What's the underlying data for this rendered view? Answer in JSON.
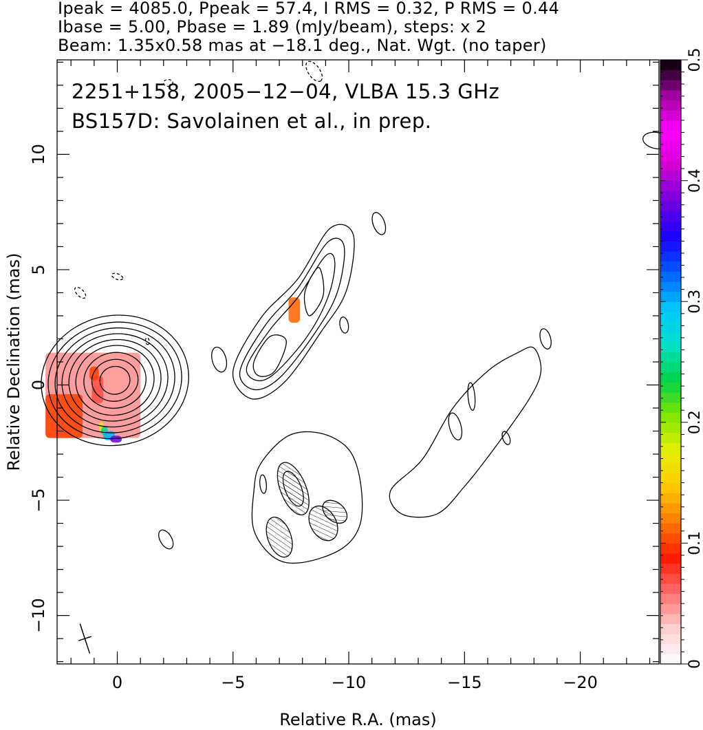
{
  "header": {
    "line1": "Ipeak = 4085.0, Ppeak = 57.4, I RMS = 0.32, P RMS = 0.44",
    "line2": "Ibase = 5.00, Pbase = 1.89 (mJy/beam), steps: x 2",
    "line3": "Beam: 1.35x0.58 mas at −18.1 deg., Nat. Wgt. (no taper)"
  },
  "annotations": {
    "line1": "2251+158, 2005−12−04, VLBA 15.3 GHz",
    "line2": "BS157D: Savolainen et al., in prep."
  },
  "chart_data": {
    "type": "heatmap",
    "title": "",
    "xlabel": "Relative R.A. (mas)",
    "ylabel": "Relative Declination (mas)",
    "xlim": [
      2.6,
      -23.4
    ],
    "ylim": [
      -12.1,
      14.1
    ],
    "xticks": [
      0,
      -5,
      -10,
      -15,
      -20
    ],
    "xtick_labels": [
      "0",
      "−5",
      "−10",
      "−15",
      "−20"
    ],
    "yticks": [
      -10,
      -5,
      0,
      5,
      10
    ],
    "ytick_labels": [
      "−10",
      "−5",
      "0",
      "5",
      "10"
    ],
    "colorbar": {
      "range": [
        0,
        0.5
      ],
      "ticks": [
        0,
        0.1,
        0.2,
        0.3,
        0.4,
        0.5
      ],
      "tick_labels": [
        "0",
        "0.1",
        "0.2",
        "0.3",
        "0.4",
        "0.5"
      ],
      "colormap": [
        "#ffffff",
        "#ffd0d0",
        "#ff7070",
        "#ff1a00",
        "#ff7a00",
        "#ffc800",
        "#e6f000",
        "#7fe600",
        "#00d24a",
        "#00e0c8",
        "#00c8ff",
        "#0060ff",
        "#1a00ff",
        "#7000e0",
        "#d000d0",
        "#ff00ff",
        "#a000a0",
        "#000000"
      ]
    },
    "intensity_contours": {
      "base_mJy_per_beam": 5.0,
      "step_factor": 2,
      "core": {
        "center": [
          0.1,
          0.2
        ],
        "levels": [
          {
            "rx": 3.2,
            "ry": 2.8,
            "rot": -12
          },
          {
            "rx": 2.9,
            "ry": 2.5,
            "rot": -12
          },
          {
            "rx": 2.6,
            "ry": 2.25,
            "rot": -12
          },
          {
            "rx": 2.3,
            "ry": 2.0,
            "rot": -12
          },
          {
            "rx": 2.0,
            "ry": 1.75,
            "rot": -12
          },
          {
            "rx": 1.7,
            "ry": 1.5,
            "rot": -12
          },
          {
            "rx": 1.35,
            "ry": 1.2,
            "rot": -12
          },
          {
            "rx": 1.0,
            "ry": 0.9,
            "rot": -12
          },
          {
            "rx": 0.65,
            "ry": 0.6,
            "rot": -12
          }
        ]
      },
      "jet_component": {
        "levels": [
          [
            [
              -5.0,
              0.6
            ],
            [
              -6.2,
              2.9
            ],
            [
              -7.8,
              4.6
            ],
            [
              -9.2,
              6.8
            ],
            [
              -10.2,
              6.5
            ],
            [
              -9.9,
              4.1
            ],
            [
              -8.8,
              2.3
            ],
            [
              -7.2,
              0.1
            ],
            [
              -5.8,
              -0.6
            ]
          ],
          [
            [
              -5.3,
              0.6
            ],
            [
              -6.4,
              2.6
            ],
            [
              -7.8,
              4.2
            ],
            [
              -9.1,
              6.2
            ],
            [
              -9.8,
              6.0
            ],
            [
              -9.5,
              4.0
            ],
            [
              -8.5,
              2.2
            ],
            [
              -7.0,
              0.3
            ],
            [
              -5.9,
              -0.2
            ]
          ],
          [
            [
              -5.6,
              0.8
            ],
            [
              -6.6,
              2.4
            ],
            [
              -7.8,
              3.8
            ],
            [
              -9.0,
              5.6
            ],
            [
              -9.4,
              5.3
            ],
            [
              -9.1,
              3.8
            ],
            [
              -8.2,
              2.1
            ],
            [
              -6.8,
              0.5
            ],
            [
              -6.0,
              0.2
            ]
          ],
          [
            [
              -5.9,
              1.0
            ],
            [
              -6.6,
              2.1
            ],
            [
              -7.3,
              1.9
            ],
            [
              -6.8,
              0.6
            ],
            [
              -6.1,
              0.4
            ]
          ],
          [
            [
              -8.7,
              5.1
            ],
            [
              -8.9,
              3.9
            ],
            [
              -8.3,
              3.0
            ],
            [
              -8.1,
              4.0
            ]
          ]
        ]
      },
      "extended_jet": {
        "points": [
          [
            -11.8,
            -4.6
          ],
          [
            -13.2,
            -3.2
          ],
          [
            -14.5,
            -1.0
          ],
          [
            -16.0,
            0.6
          ],
          [
            -17.3,
            1.4
          ],
          [
            -18.0,
            1.6
          ],
          [
            -18.3,
            0.6
          ],
          [
            -17.8,
            -0.6
          ],
          [
            -16.4,
            -2.6
          ],
          [
            -15.0,
            -4.4
          ],
          [
            -13.8,
            -5.6
          ],
          [
            -12.3,
            -5.6
          ]
        ]
      },
      "southern_region": {
        "points": [
          [
            -6.2,
            -3.4
          ],
          [
            -7.4,
            -2.2
          ],
          [
            -8.8,
            -2.1
          ],
          [
            -10.0,
            -2.8
          ],
          [
            -10.5,
            -4.2
          ],
          [
            -10.5,
            -6.0
          ],
          [
            -9.7,
            -7.1
          ],
          [
            -8.0,
            -7.7
          ],
          [
            -6.8,
            -7.5
          ],
          [
            -5.9,
            -6.3
          ],
          [
            -5.9,
            -4.6
          ]
        ],
        "inner_levels": [
          {
            "center": [
              -7.6,
              -4.5
            ],
            "rx": 1.2,
            "ry": 0.55,
            "rot": 68
          },
          {
            "center": [
              -7.6,
              -4.5
            ],
            "rx": 0.8,
            "ry": 0.35,
            "rot": 68
          },
          {
            "center": [
              -7.0,
              -6.6
            ],
            "rx": 0.9,
            "ry": 0.5,
            "rot": 70
          },
          {
            "center": [
              -8.9,
              -6.0
            ],
            "rx": 0.8,
            "ry": 0.55,
            "rot": 60
          },
          {
            "center": [
              -9.4,
              -5.5
            ],
            "rx": 0.6,
            "ry": 0.4,
            "rot": 40
          }
        ]
      },
      "islands": [
        {
          "center": [
            -2.1,
            -6.7
          ],
          "rx": 0.45,
          "ry": 0.25,
          "rot": 60,
          "dashed": false
        },
        {
          "center": [
            -4.4,
            1.1
          ],
          "rx": 0.55,
          "ry": 0.3,
          "rot": 75,
          "dashed": false
        },
        {
          "center": [
            -11.3,
            7.0
          ],
          "rx": 0.5,
          "ry": 0.25,
          "rot": 70,
          "dashed": false
        },
        {
          "center": [
            -9.8,
            2.6
          ],
          "rx": 0.35,
          "ry": 0.18,
          "rot": 80,
          "dashed": false
        },
        {
          "center": [
            -18.5,
            2.0
          ],
          "rx": 0.45,
          "ry": 0.22,
          "rot": 75,
          "dashed": false
        },
        {
          "center": [
            -15.3,
            -0.5
          ],
          "rx": 0.6,
          "ry": 0.15,
          "rot": 85,
          "dashed": false
        },
        {
          "center": [
            -14.6,
            -1.8
          ],
          "rx": 0.6,
          "ry": 0.25,
          "rot": 75,
          "dashed": false
        },
        {
          "center": [
            -16.8,
            -2.3
          ],
          "rx": 0.3,
          "ry": 0.15,
          "rot": 70,
          "dashed": false
        },
        {
          "center": [
            -6.3,
            -4.3
          ],
          "rx": 0.4,
          "ry": 0.14,
          "rot": 85,
          "dashed": false
        },
        {
          "center": [
            -23.3,
            10.6
          ],
          "rx": 0.6,
          "ry": 0.35,
          "rot": 10,
          "dashed": false
        },
        {
          "center": [
            -8.5,
            13.6
          ],
          "rx": 0.5,
          "ry": 0.25,
          "rot": 55,
          "dashed": true
        },
        {
          "center": [
            -2.2,
            13.1
          ],
          "rx": 0.2,
          "ry": 0.15,
          "rot": 0,
          "dashed": true
        },
        {
          "center": [
            1.6,
            4.0
          ],
          "rx": 0.3,
          "ry": 0.15,
          "rot": 45,
          "dashed": true
        },
        {
          "center": [
            0.0,
            4.7
          ],
          "rx": 0.25,
          "ry": 0.12,
          "rot": 20,
          "dashed": true
        },
        {
          "center": [
            -1.3,
            1.9
          ],
          "rx": 0.15,
          "ry": 0.08,
          "rot": 80,
          "dashed": true
        }
      ]
    },
    "polarized_intensity_patches": [
      {
        "x": [
          -1.0,
          3.1
        ],
        "y": [
          -2.3,
          1.4
        ],
        "value": 0.05
      },
      {
        "x": [
          1.5,
          3.1
        ],
        "y": [
          -2.3,
          -0.4
        ],
        "value": 0.1
      },
      {
        "x": [
          0.6,
          1.1
        ],
        "y": [
          -0.8,
          0.4
        ],
        "value": 0.07
      },
      {
        "x": [
          0.8,
          1.2
        ],
        "y": [
          0.2,
          0.8
        ],
        "value": 0.1
      },
      {
        "x": [
          -7.4,
          -7.9
        ],
        "y": [
          2.7,
          3.8
        ],
        "value": 0.11
      },
      {
        "x": [
          0.6,
          0.8
        ],
        "y": [
          -2.0,
          -1.6
        ],
        "value": 0.17
      },
      {
        "x": [
          0.4,
          0.7
        ],
        "y": [
          -2.2,
          -1.8
        ],
        "value": 0.25
      },
      {
        "x": [
          0.1,
          0.6
        ],
        "y": [
          -2.4,
          -2.0
        ],
        "value": 0.3
      },
      {
        "x": [
          -0.2,
          0.3
        ],
        "y": [
          -2.5,
          -2.2
        ],
        "value": 0.38
      }
    ],
    "restoring_beam": {
      "center": [
        1.4,
        -11.0
      ],
      "major_mas": 1.35,
      "minor_mas": 0.58,
      "pa_deg": -18.1
    }
  }
}
